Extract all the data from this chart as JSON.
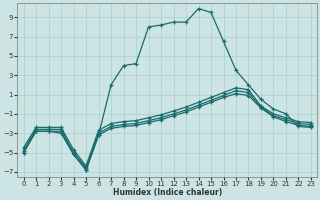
{
  "xlabel": "Humidex (Indice chaleur)",
  "background_color": "#cde4e4",
  "grid_color": "#aacfcf",
  "line_color": "#1a6b6b",
  "xlim": [
    -0.5,
    23.5
  ],
  "ylim": [
    -7.5,
    10.5
  ],
  "xticks": [
    0,
    1,
    2,
    3,
    4,
    5,
    6,
    7,
    8,
    9,
    10,
    11,
    12,
    13,
    14,
    15,
    16,
    17,
    18,
    19,
    20,
    21,
    22,
    23
  ],
  "yticks": [
    -7,
    -5,
    -3,
    -1,
    1,
    3,
    5,
    7,
    9
  ],
  "peak_x": [
    0,
    1,
    2,
    3,
    4,
    5,
    6,
    7,
    8,
    9,
    10,
    11,
    12,
    13,
    14,
    15,
    16,
    17,
    18,
    19,
    20,
    21,
    22,
    23
  ],
  "peak_y": [
    -5,
    -2.8,
    -2.8,
    -3.0,
    -5.2,
    -6.8,
    -3.2,
    2.0,
    4.0,
    4.2,
    8.0,
    8.2,
    8.5,
    8.5,
    9.9,
    9.5,
    6.5,
    3.5,
    2.0,
    0.5,
    -0.5,
    -1.0,
    -2.3,
    -2.4
  ],
  "line1_x": [
    0,
    1,
    2,
    3,
    4,
    5,
    6,
    7,
    8,
    9,
    10,
    11,
    12,
    13,
    14,
    15,
    16,
    17,
    18,
    19,
    20,
    21,
    22,
    23
  ],
  "line1_y": [
    -5.0,
    -2.8,
    -2.8,
    -2.8,
    -5.2,
    -6.8,
    -3.2,
    -2.5,
    -2.3,
    -2.2,
    -1.9,
    -1.6,
    -1.2,
    -0.8,
    -0.3,
    0.2,
    0.7,
    1.1,
    0.9,
    -0.4,
    -1.3,
    -1.8,
    -2.2,
    -2.3
  ],
  "line2_x": [
    0,
    1,
    2,
    3,
    4,
    5,
    6,
    7,
    8,
    9,
    10,
    11,
    12,
    13,
    14,
    15,
    16,
    17,
    18,
    19,
    20,
    21,
    22,
    23
  ],
  "line2_y": [
    -4.8,
    -2.6,
    -2.6,
    -2.6,
    -5.0,
    -6.6,
    -3.0,
    -2.3,
    -2.1,
    -2.0,
    -1.7,
    -1.4,
    -1.0,
    -0.6,
    -0.1,
    0.4,
    0.9,
    1.4,
    1.2,
    -0.3,
    -1.2,
    -1.6,
    -2.0,
    -2.1
  ],
  "line3_x": [
    0,
    1,
    2,
    3,
    4,
    5,
    6,
    7,
    8,
    9,
    10,
    11,
    12,
    13,
    14,
    15,
    16,
    17,
    18,
    19,
    20,
    21,
    22,
    23
  ],
  "line3_y": [
    -4.5,
    -2.4,
    -2.4,
    -2.4,
    -4.7,
    -6.4,
    -2.7,
    -2.0,
    -1.8,
    -1.7,
    -1.4,
    -1.1,
    -0.7,
    -0.3,
    0.2,
    0.7,
    1.2,
    1.7,
    1.5,
    -0.2,
    -1.0,
    -1.4,
    -1.8,
    -1.9
  ]
}
